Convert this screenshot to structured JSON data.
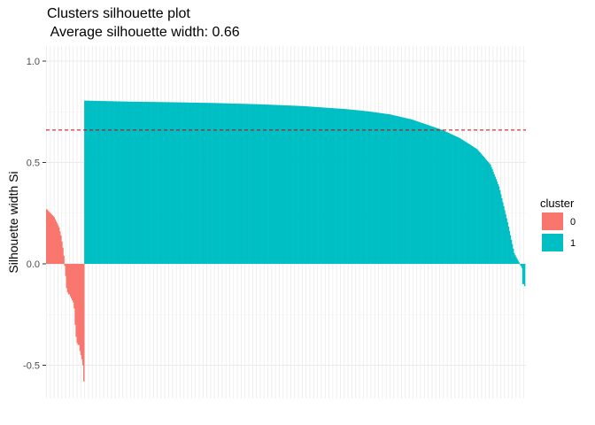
{
  "chart_data": {
    "type": "bar",
    "title": "Clusters silhouette plot",
    "subtitle": " Average silhouette width: 0.66",
    "xlabel": "",
    "ylabel": "Silhouette width Si",
    "ylim": [
      -0.6,
      1.05
    ],
    "yticks": [
      -0.5,
      0.0,
      0.5,
      1.0
    ],
    "ytick_labels": [
      "-0.5",
      "0.0",
      "0.5",
      "1.0"
    ],
    "average_line": {
      "value": 0.66,
      "color": "#cc0000",
      "style": "dashed"
    },
    "grid": true,
    "legend": {
      "title": "cluster",
      "placement": "right",
      "entries": [
        {
          "label": "0",
          "color": "#F8766D"
        },
        {
          "label": "1",
          "color": "#00BFC4"
        }
      ]
    },
    "series": [
      {
        "cluster": "0",
        "color": "#F8766D",
        "values": [
          0.27,
          0.265,
          0.26,
          0.255,
          0.25,
          0.245,
          0.24,
          0.235,
          0.23,
          0.22,
          0.21,
          0.2,
          0.19,
          0.18,
          0.16,
          0.14,
          0.11,
          0.08,
          0.04,
          -0.01,
          -0.06,
          -0.12,
          -0.14,
          -0.15,
          -0.15,
          -0.16,
          -0.17,
          -0.18,
          -0.19,
          -0.22,
          -0.3,
          -0.36,
          -0.39,
          -0.4,
          -0.4,
          -0.43,
          -0.45,
          -0.47,
          -0.5,
          -0.58
        ]
      },
      {
        "cluster": "1",
        "color": "#00BFC4",
        "profile": [
          [
            0,
            0.805
          ],
          [
            0.1,
            0.8
          ],
          [
            0.2,
            0.797
          ],
          [
            0.3,
            0.793
          ],
          [
            0.4,
            0.787
          ],
          [
            0.5,
            0.778
          ],
          [
            0.6,
            0.763
          ],
          [
            0.65,
            0.752
          ],
          [
            0.7,
            0.737
          ],
          [
            0.75,
            0.712
          ],
          [
            0.8,
            0.675
          ],
          [
            0.82,
            0.66
          ],
          [
            0.86,
            0.62
          ],
          [
            0.9,
            0.565
          ],
          [
            0.93,
            0.49
          ],
          [
            0.95,
            0.38
          ],
          [
            0.97,
            0.2
          ],
          [
            0.985,
            0.05
          ],
          [
            1.0,
            -0.01
          ]
        ],
        "count": 458,
        "tail_values": [
          -0.02,
          -0.1,
          -0.1,
          -0.11
        ]
      }
    ]
  }
}
